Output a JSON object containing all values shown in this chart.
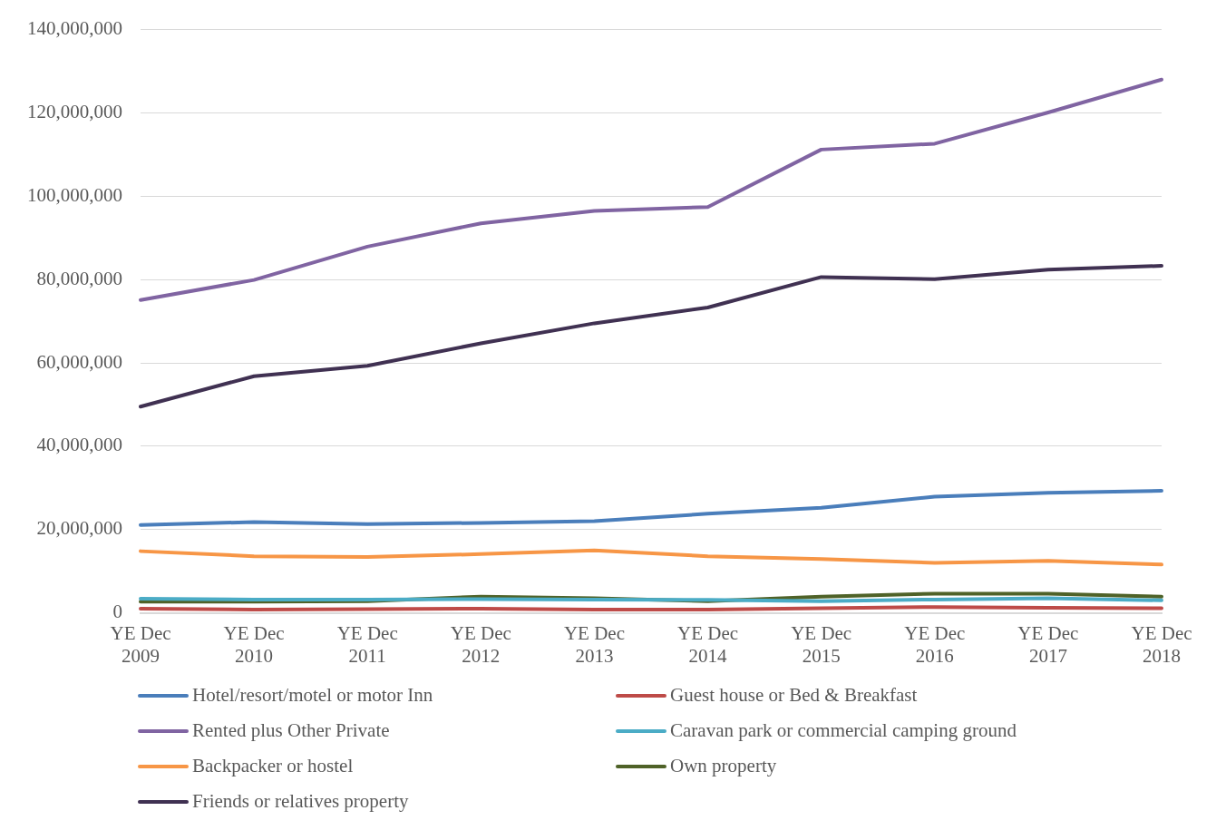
{
  "chart_data": {
    "type": "line",
    "categories": [
      "YE Dec 2009",
      "YE Dec 2010",
      "YE Dec 2011",
      "YE Dec 2012",
      "YE Dec 2013",
      "YE Dec 2014",
      "YE Dec 2015",
      "YE Dec 2016",
      "YE Dec 2017",
      "YE Dec 2018"
    ],
    "series": [
      {
        "name": "Hotel/resort/motel or motor Inn",
        "color": "#4a7ebb",
        "values": [
          21100000,
          21800000,
          21300000,
          21600000,
          22000000,
          23800000,
          25200000,
          27900000,
          28800000,
          29300000
        ]
      },
      {
        "name": "Guest house or Bed & Breakfast",
        "color": "#be4b48",
        "values": [
          1000000,
          800000,
          900000,
          1000000,
          800000,
          800000,
          1100000,
          1400000,
          1200000,
          1100000
        ]
      },
      {
        "name": "Rented plus Other Private",
        "color": "#8064a2",
        "values": [
          75100000,
          79900000,
          87900000,
          93500000,
          96500000,
          97400000,
          111200000,
          112600000,
          120100000,
          128000000
        ]
      },
      {
        "name": "Caravan park or commercial camping ground",
        "color": "#4bacc6",
        "values": [
          3400000,
          3200000,
          3200000,
          3300000,
          3200000,
          3100000,
          2800000,
          3200000,
          3500000,
          3000000
        ]
      },
      {
        "name": "Backpacker or hostel",
        "color": "#f79646",
        "values": [
          14800000,
          13600000,
          13400000,
          14100000,
          15000000,
          13600000,
          12900000,
          12000000,
          12500000,
          11600000
        ]
      },
      {
        "name": "Own property",
        "color": "#4f6228",
        "values": [
          2700000,
          2700000,
          2800000,
          3900000,
          3500000,
          2800000,
          3900000,
          4600000,
          4600000,
          3900000
        ]
      },
      {
        "name": "Friends or relatives property",
        "color": "#403152",
        "values": [
          49500000,
          56800000,
          59300000,
          64700000,
          69500000,
          73300000,
          80600000,
          80100000,
          82400000,
          83300000
        ]
      }
    ],
    "ylim": [
      0,
      140000000
    ],
    "yticks": [
      0,
      {
        "value": 20000000,
        "label": "20,000,000"
      },
      {
        "value": 40000000,
        "label": "40,000,000"
      },
      {
        "value": 60000000,
        "label": "60,000,000"
      },
      {
        "value": 80000000,
        "label": "80,000,000"
      },
      {
        "value": 100000000,
        "label": "100,000,000"
      },
      {
        "value": 120000000,
        "label": "120,000,000"
      },
      {
        "value": 140000000,
        "label": "140,000,000"
      }
    ],
    "grid": "y",
    "legend": "bottom",
    "marker": "none",
    "line_style": "solid"
  }
}
